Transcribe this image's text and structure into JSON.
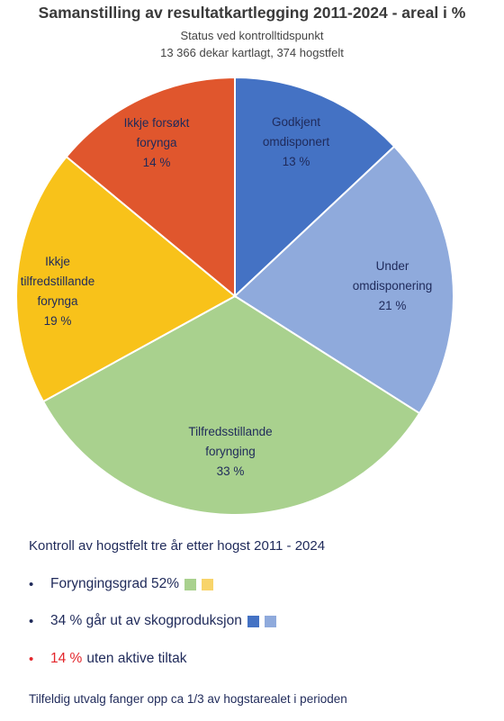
{
  "title": "Samanstilling av resultatkartlegging 2011-2024 - areal i %",
  "subtitle_1": "Status ved kontrolltidspunkt",
  "subtitle_2": "13 366 dekar kartlagt, 374 hogstfelt",
  "chart_data": {
    "type": "pie",
    "title": "Samanstilling av resultatkartlegging 2011-2024 - areal i %",
    "slices": [
      {
        "label_lines": [
          "Godkjent",
          "omdisponert"
        ],
        "value": 13,
        "value_label": "13 %",
        "color": "#4472c4",
        "text_color": "#1f2a5a"
      },
      {
        "label_lines": [
          "Under",
          "omdisponering"
        ],
        "value": 21,
        "value_label": "21 %",
        "color": "#8faadc",
        "text_color": "#1f2a5a"
      },
      {
        "label_lines": [
          "Tilfredsstillande",
          "forynging"
        ],
        "value": 33,
        "value_label": "33 %",
        "color": "#a9d18e",
        "text_color": "#1f2a5a"
      },
      {
        "label_lines": [
          "Ikkje",
          "tilfredstillande",
          "forynga"
        ],
        "value": 19,
        "value_label": "19 %",
        "color": "#f8c21a",
        "text_color": "#1f2a5a"
      },
      {
        "label_lines": [
          "Ikkje forsøkt",
          "forynga"
        ],
        "value": 14,
        "value_label": "14 %",
        "color": "#e0562d",
        "text_color": "#1f2a5a"
      }
    ]
  },
  "summary": {
    "heading": "Kontroll av hogstfelt tre år etter hogst 2011 - 2024",
    "bullet_char": "•",
    "rows": [
      {
        "text": "Foryngingsgrad 52%",
        "swatches": [
          "#a9d18e",
          "#f8d46a"
        ]
      },
      {
        "text": "34 % går ut av skogproduksjon",
        "swatches": [
          "#4472c4",
          "#8faadc"
        ]
      },
      {
        "highlight": "14 %",
        "text": "uten aktive tiltak",
        "highlight_color": "#e3262b"
      }
    ],
    "footnote": "Tilfeldig utvalg fanger opp ca 1/3 av hogstarealet i perioden"
  }
}
